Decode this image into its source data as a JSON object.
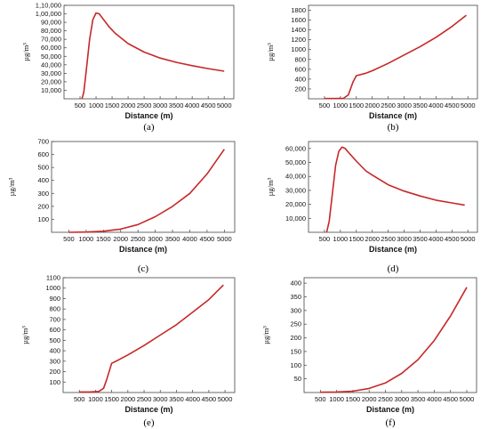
{
  "chart_data": [
    {
      "type": "line",
      "caption": "(a)",
      "xlabel": "Distance (m)",
      "ylabel": "µg/m³",
      "xlim": [
        0,
        5300
      ],
      "ylim": [
        0,
        110000
      ],
      "xticks": [
        500,
        1000,
        1500,
        2000,
        2500,
        3000,
        3500,
        4000,
        4500,
        5000
      ],
      "xtick_labels": [
        "500",
        "1000",
        "1500",
        "2000",
        "2500",
        "3000",
        "3500",
        "4000",
        "4500",
        "5000"
      ],
      "yticks": [
        10000,
        20000,
        30000,
        40000,
        50000,
        60000,
        70000,
        80000,
        90000,
        100000,
        110000
      ],
      "ytick_labels": [
        "10,000",
        "20,000",
        "30,000",
        "40,000",
        "50,000",
        "60,000",
        "70,000",
        "80,000",
        "90,000",
        "1,00,000",
        "1,10,000"
      ],
      "series_color": "#c62828",
      "x": [
        560,
        620,
        700,
        800,
        900,
        1000,
        1100,
        1200,
        1400,
        1600,
        2000,
        2500,
        3000,
        3500,
        4000,
        4500,
        5000
      ],
      "y": [
        0,
        8000,
        35000,
        70000,
        93000,
        101000,
        100000,
        95000,
        85000,
        77000,
        65000,
        55000,
        48000,
        43000,
        39000,
        35500,
        32500
      ]
    },
    {
      "type": "line",
      "caption": "(b)",
      "xlabel": "Distance (m)",
      "ylabel": "µg/m³",
      "xlim": [
        0,
        5300
      ],
      "ylim": [
        0,
        1900
      ],
      "xticks": [
        500,
        1000,
        1500,
        2000,
        2500,
        3000,
        3500,
        4000,
        4500,
        5000
      ],
      "xtick_labels": [
        "500",
        "1000",
        "1500",
        "2000",
        "2500",
        "3000",
        "3500",
        "4000",
        "4500",
        "5000"
      ],
      "yticks": [
        200,
        400,
        600,
        800,
        1000,
        1200,
        1400,
        1600,
        1800
      ],
      "ytick_labels": [
        "200",
        "400",
        "600",
        "800",
        "1000",
        "1200",
        "1400",
        "1600",
        "1800"
      ],
      "series_color": "#c62828",
      "x": [
        500,
        800,
        1100,
        1250,
        1400,
        1500,
        1800,
        2000,
        2500,
        3000,
        3500,
        4000,
        4500,
        4950
      ],
      "y": [
        5,
        5,
        10,
        80,
        350,
        470,
        520,
        570,
        720,
        890,
        1060,
        1250,
        1470,
        1700
      ]
    },
    {
      "type": "line",
      "caption": "(c)",
      "xlabel": "Distance (m)",
      "ylabel": "µg/m³",
      "xlim": [
        0,
        5300
      ],
      "ylim": [
        0,
        700
      ],
      "xticks": [
        500,
        1000,
        1500,
        2000,
        2500,
        3000,
        3500,
        4000,
        4500,
        5000
      ],
      "xtick_labels": [
        "500",
        "1000",
        "1500",
        "2000",
        "2500",
        "3000",
        "3500",
        "4000",
        "4500",
        "5000"
      ],
      "yticks": [
        100,
        200,
        300,
        400,
        500,
        600,
        700
      ],
      "ytick_labels": [
        "100",
        "200",
        "300",
        "400",
        "500",
        "600",
        "700"
      ],
      "series_color": "#c62828",
      "x": [
        500,
        1000,
        1500,
        2000,
        2500,
        3000,
        3500,
        4000,
        4500,
        5000
      ],
      "y": [
        0,
        2,
        8,
        25,
        60,
        120,
        200,
        300,
        450,
        640
      ]
    },
    {
      "type": "line",
      "caption": "(d)",
      "xlabel": "Distance (m)",
      "ylabel": "µg/m³",
      "xlim": [
        0,
        5300
      ],
      "ylim": [
        0,
        65000
      ],
      "xticks": [
        500,
        1000,
        1500,
        2000,
        2500,
        3000,
        3500,
        4000,
        4500,
        5000
      ],
      "xtick_labels": [
        "500",
        "1000",
        "1500",
        "2000",
        "2500",
        "3000",
        "3500",
        "4000",
        "4500",
        "5000"
      ],
      "yticks": [
        10000,
        20000,
        30000,
        40000,
        50000,
        60000
      ],
      "ytick_labels": [
        "10,000",
        "20,000",
        "30,000",
        "40,000",
        "50,000",
        "60,000"
      ],
      "series_color": "#c62828",
      "x": [
        570,
        650,
        750,
        850,
        950,
        1050,
        1150,
        1300,
        1500,
        1800,
        2000,
        2500,
        3000,
        3500,
        4000,
        4500,
        4900
      ],
      "y": [
        0,
        8000,
        28000,
        48000,
        58000,
        61000,
        60000,
        56000,
        51000,
        44000,
        41000,
        34000,
        29500,
        26000,
        23000,
        21000,
        19500
      ]
    },
    {
      "type": "line",
      "caption": "(e)",
      "xlabel": "Distance (m)",
      "ylabel": "µg/m³",
      "xlim": [
        0,
        5300
      ],
      "ylim": [
        0,
        1100
      ],
      "xticks": [
        500,
        1000,
        1500,
        2000,
        2500,
        3000,
        3500,
        4000,
        4500,
        5000
      ],
      "xtick_labels": [
        "500",
        "1000",
        "1500",
        "2000",
        "2500",
        "3000",
        "3500",
        "4000",
        "4500",
        "5000"
      ],
      "yticks": [
        100,
        200,
        300,
        400,
        500,
        600,
        700,
        800,
        900,
        1000,
        1100
      ],
      "ytick_labels": [
        "100",
        "200",
        "300",
        "400",
        "500",
        "600",
        "700",
        "800",
        "900",
        "1000",
        "1100"
      ],
      "series_color": "#c62828",
      "x": [
        500,
        800,
        1100,
        1250,
        1350,
        1500,
        1700,
        2000,
        2500,
        3000,
        3500,
        4000,
        4500,
        4950
      ],
      "y": [
        5,
        5,
        10,
        40,
        130,
        280,
        310,
        360,
        450,
        550,
        650,
        770,
        890,
        1030
      ]
    },
    {
      "type": "line",
      "caption": "(f)",
      "xlabel": "Distance (m)",
      "ylabel": "µg/m³",
      "xlim": [
        0,
        5300
      ],
      "ylim": [
        0,
        420
      ],
      "xticks": [
        500,
        1000,
        1500,
        2000,
        2500,
        3000,
        3500,
        4000,
        4500,
        5000
      ],
      "xtick_labels": [
        "500",
        "1000",
        "1500",
        "2000",
        "2500",
        "3000",
        "3500",
        "4000",
        "4500",
        "5000"
      ],
      "yticks": [
        50,
        100,
        150,
        200,
        250,
        300,
        350,
        400
      ],
      "ytick_labels": [
        "50",
        "100",
        "150",
        "200",
        "250",
        "300",
        "350",
        "400"
      ],
      "series_color": "#c62828",
      "x": [
        500,
        1000,
        1500,
        2000,
        2500,
        3000,
        3500,
        4000,
        4500,
        5000
      ],
      "y": [
        1,
        2,
        5,
        15,
        35,
        70,
        120,
        190,
        280,
        385
      ]
    }
  ]
}
